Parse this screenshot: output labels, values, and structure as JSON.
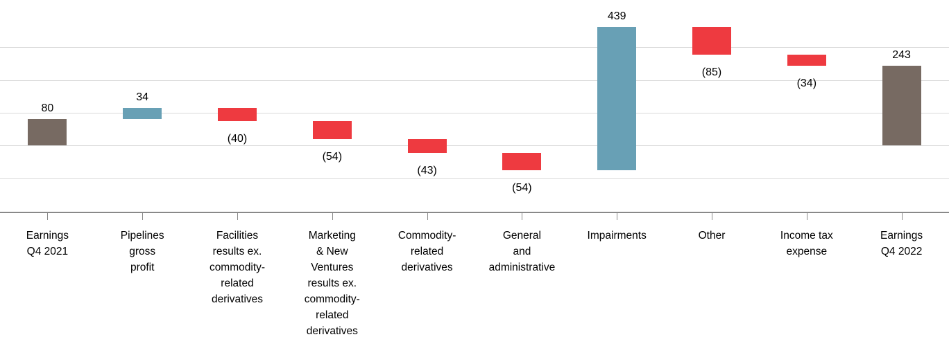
{
  "chart_data": {
    "type": "bar",
    "subtype": "waterfall",
    "legend": "none",
    "background": "#ffffff",
    "value_label_color": "#000000",
    "gridlines": {
      "values": [
        300,
        200,
        100,
        0,
        -100
      ],
      "color": "#d9d9d9"
    },
    "x_axis": {
      "line_color": "#898989",
      "tick_color": "#898989",
      "label_color": "#000000"
    },
    "ylim": [
      -215,
      450
    ],
    "colors": {
      "total": "#776a62",
      "positive": "#68a0b5",
      "negative": "#ee3a40"
    },
    "bars": [
      {
        "label": "Earnings\nQ4 2021",
        "value": 80,
        "value_label": "80",
        "role": "total"
      },
      {
        "label": "Pipelines\ngross\nprofit",
        "value": 34,
        "value_label": "34",
        "role": "delta"
      },
      {
        "label": "Facilities\nresults ex.\ncommodity-\nrelated\nderivatives",
        "value": -40,
        "value_label": "(40)",
        "role": "delta"
      },
      {
        "label": "Marketing\n& New\nVentures\nresults ex.\ncommodity-\nrelated\nderivatives",
        "value": -54,
        "value_label": "(54)",
        "role": "delta"
      },
      {
        "label": "Commodity-\nrelated\nderivatives",
        "value": -43,
        "value_label": "(43)",
        "role": "delta"
      },
      {
        "label": "General\nand\nadministrative",
        "value": -54,
        "value_label": "(54)",
        "role": "delta"
      },
      {
        "label": "Impairments",
        "value": 439,
        "value_label": "439",
        "role": "delta"
      },
      {
        "label": "Other",
        "value": -85,
        "value_label": "(85)",
        "role": "delta"
      },
      {
        "label": "Income tax\nexpense",
        "value": -34,
        "value_label": "(34)",
        "role": "delta"
      },
      {
        "label": "Earnings\nQ4 2022",
        "value": 243,
        "value_label": "243",
        "role": "total"
      }
    ]
  }
}
